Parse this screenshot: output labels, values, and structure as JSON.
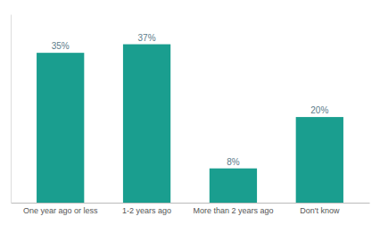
{
  "chart_data": {
    "type": "bar",
    "categories": [
      "One year ago or less",
      "1-2 years ago",
      "More than 2 years ago",
      "Don't know"
    ],
    "values": [
      35,
      37,
      8,
      20
    ],
    "value_labels": [
      "35%",
      "37%",
      "8%",
      "20%"
    ],
    "color": "#1a9e8f",
    "ylim": [
      0,
      44
    ],
    "grid": false,
    "data_labels": true,
    "tick_labels": "x"
  }
}
